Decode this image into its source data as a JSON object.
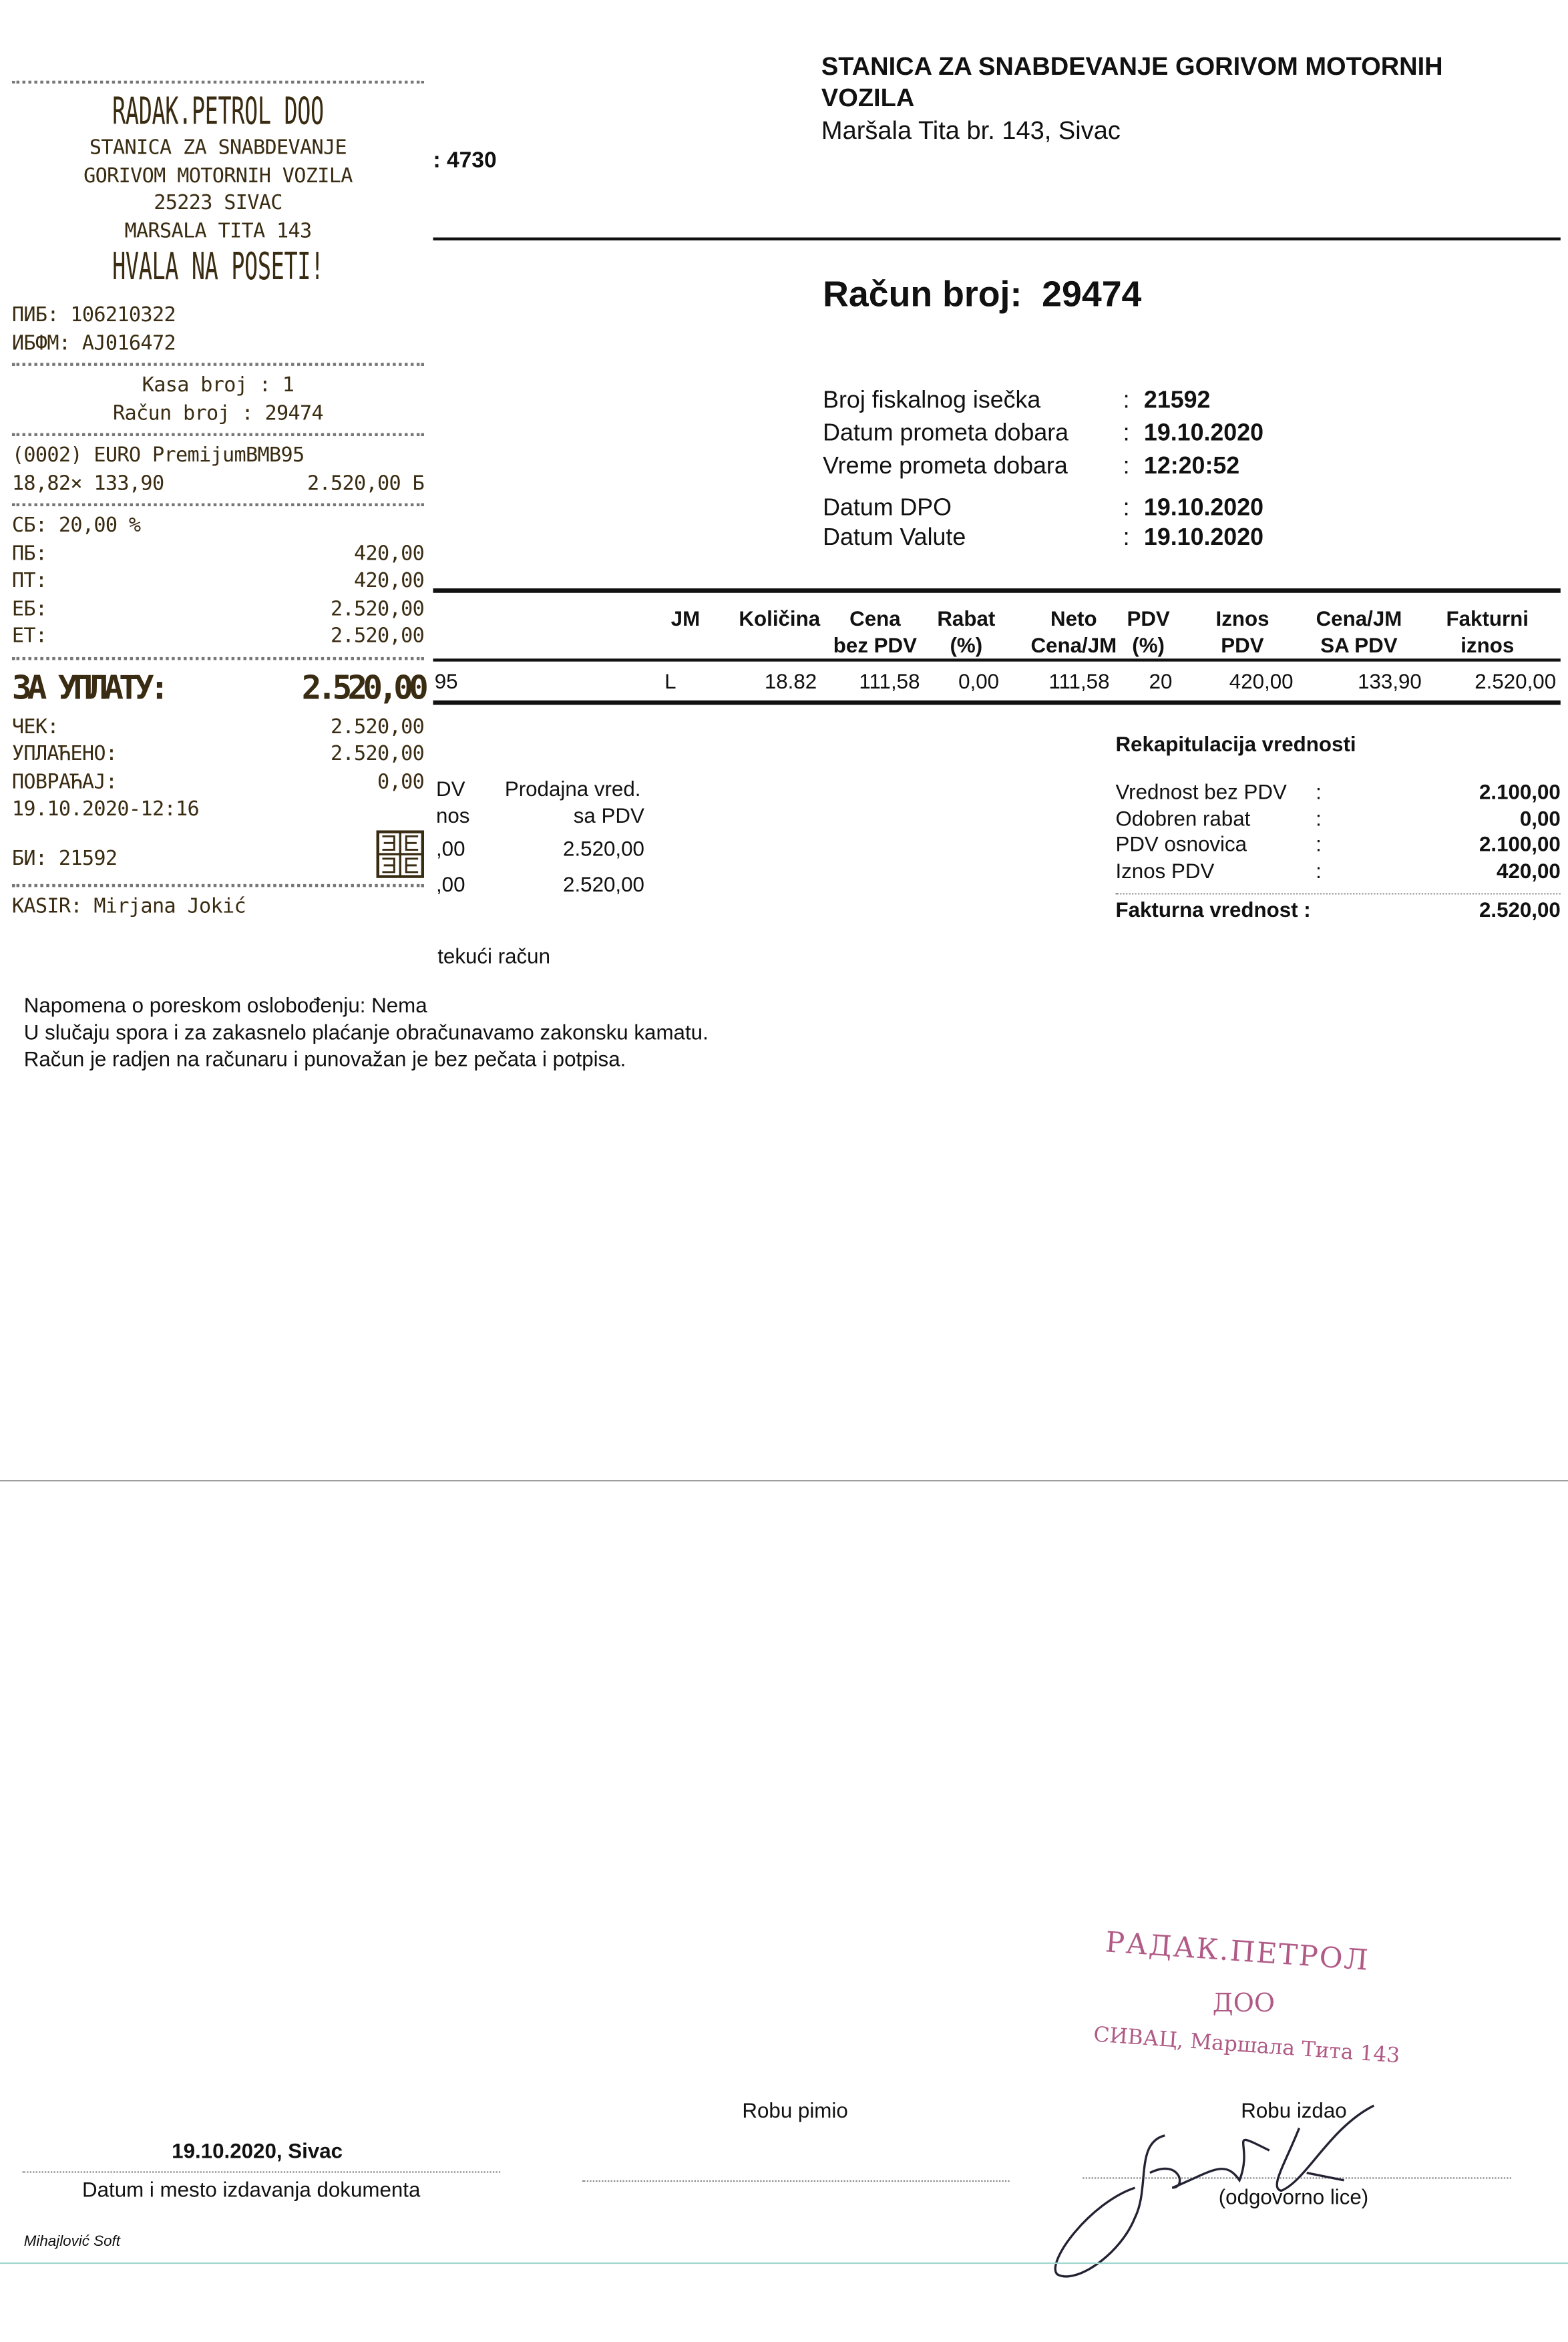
{
  "receipt": {
    "company": "RADAK.PETROL DOO",
    "line1": "STANICA ZA SNABDEVANJE",
    "line2": "GORIVOM MOTORNIH VOZILA",
    "line3": "25223 SIVAC",
    "line4": "MARSALA TITA 143",
    "thanks": "HVALA NA POSETI!",
    "pib": "ПИБ: 106210322",
    "ibfm": "ИБФМ: AJ016472",
    "kasa": "Kasa broj : 1",
    "racun": "Račun broj : 29474",
    "item_name": "(0002) EURO PremijumBMB95",
    "item_qty_price": "18,82× 133,90",
    "item_total": "2.520,00 Б",
    "sb": "СБ: 20,00 %",
    "rows": [
      {
        "label": "ПБ:",
        "value": "420,00"
      },
      {
        "label": "ПТ:",
        "value": "420,00"
      },
      {
        "label": "ЕБ:",
        "value": "2.520,00"
      },
      {
        "label": "ЕТ:",
        "value": "2.520,00"
      }
    ],
    "total_label": "ЗА УПЛАТУ:",
    "total_value": "2.520,00",
    "pay_rows": [
      {
        "label": "ЧЕК:",
        "value": "2.520,00"
      },
      {
        "label": "УПЛАЋЕНО:",
        "value": "2.520,00"
      },
      {
        "label": "ПОВРАЋАЈ:",
        "value": "0,00"
      }
    ],
    "datetime": "19.10.2020-12:16",
    "bi": "БИ: 21592",
    "cashier": "KASIR: Mirjana Jokić"
  },
  "header": {
    "company_line1": "STANICA ZA SNABDEVANJE GORIVOM MOTORNIH",
    "company_line2": "VOZILA",
    "address": "Maršala Tita  br. 143, Sivac",
    "partial_number": ": 4730"
  },
  "invoice": {
    "title_label": "Račun broj:",
    "title_number": "29474",
    "info": [
      {
        "label": "Broj fiskalnog isečka",
        "value": "21592"
      },
      {
        "label": "Datum prometa dobara",
        "value": "19.10.2020"
      },
      {
        "label": "Vreme prometa dobara",
        "value": "12:20:52"
      },
      {
        "label": "Datum DPO",
        "value": "19.10.2020"
      },
      {
        "label": "Datum Valute",
        "value": "19.10.2020"
      }
    ]
  },
  "table": {
    "headers": [
      {
        "l1": "JM",
        "l2": ""
      },
      {
        "l1": "Količina",
        "l2": ""
      },
      {
        "l1": "Cena",
        "l2": "bez PDV"
      },
      {
        "l1": "Rabat",
        "l2": "(%)"
      },
      {
        "l1": "Neto",
        "l2": "Cena/JM"
      },
      {
        "l1": "PDV",
        "l2": "(%)"
      },
      {
        "l1": "Iznos",
        "l2": "PDV"
      },
      {
        "l1": "Cena/JM",
        "l2": "SA PDV"
      },
      {
        "l1": "Fakturni",
        "l2": "iznos"
      }
    ],
    "row": {
      "partial_name": "95",
      "cells": [
        "L",
        "18.82",
        "111,58",
        "0,00",
        "111,58",
        "20",
        "420,00",
        "133,90",
        "2.520,00"
      ]
    }
  },
  "tax_summary": {
    "h1a": "DV",
    "h1b": "nos",
    "h2a": "Prodajna vred.",
    "h2b": "sa PDV",
    "r1a": ",00",
    "r1b": "2.520,00",
    "r2a": ",00",
    "r2b": "2.520,00"
  },
  "payment_partial": "tekući račun",
  "recap": {
    "title": "Rekapitulacija vrednosti",
    "rows": [
      {
        "label": "Vrednost bez PDV",
        "value": "2.100,00"
      },
      {
        "label": "Odobren rabat",
        "value": "0,00"
      },
      {
        "label": "PDV osnovica",
        "value": "2.100,00"
      },
      {
        "label": "Iznos PDV",
        "value": "420,00"
      }
    ],
    "total_label": "Fakturna vrednost :",
    "total_value": "2.520,00"
  },
  "notes": [
    "Napomena o poreskom oslobođenju: Nema",
    "U slučaju spora i za zakasnelo plaćanje obračunavamo zakonsku kamatu.",
    "Račun je radjen na računaru i punovažan je bez pečata i potpisa."
  ],
  "footer": {
    "place_date": "19.10.2020, Sivac",
    "place_date_label": "Datum i mesto izdavanja dokumenta",
    "received_label": "Robu pimio",
    "issued_label": "Robu izdao",
    "responsible_label": "(odgovorno lice)",
    "software": "Mihajlović Soft"
  },
  "stamp": {
    "line1": "РАДАК.ПЕТРОЛ",
    "line2": "ДОО",
    "line3": "СИВАЦ, Маршала Тита 143"
  },
  "colors": {
    "receipt_ink": "#3a2c12",
    "stamp": "#b05a86",
    "divider_teal": "#9fd8d0"
  }
}
